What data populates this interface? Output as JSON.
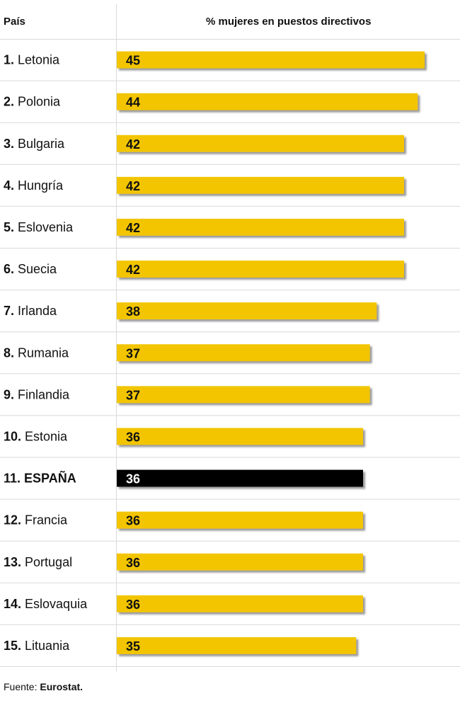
{
  "header": {
    "country_label": "País",
    "value_label": "% mujeres en puestos directivos"
  },
  "footer": {
    "prefix": "Fuente:",
    "source": "Eurostat."
  },
  "colors": {
    "bar": "#f2c500",
    "highlight": "#000000",
    "shadow": "#999999",
    "rule": "#d9d9d9"
  },
  "chart_data": {
    "type": "bar",
    "orientation": "horizontal",
    "xlim": [
      0,
      45
    ],
    "categories": [
      {
        "rank": "1.",
        "name": "Letonia",
        "value": 45,
        "highlight": false
      },
      {
        "rank": "2.",
        "name": "Polonia",
        "value": 44,
        "highlight": false
      },
      {
        "rank": "3.",
        "name": "Bulgaria",
        "value": 42,
        "highlight": false
      },
      {
        "rank": "4.",
        "name": "Hungría",
        "value": 42,
        "highlight": false
      },
      {
        "rank": "5.",
        "name": "Eslovenia",
        "value": 42,
        "highlight": false
      },
      {
        "rank": "6.",
        "name": "Suecia",
        "value": 42,
        "highlight": false
      },
      {
        "rank": "7.",
        "name": "Irlanda",
        "value": 38,
        "highlight": false
      },
      {
        "rank": "8.",
        "name": "Rumania",
        "value": 37,
        "highlight": false
      },
      {
        "rank": "9.",
        "name": "Finlandia",
        "value": 37,
        "highlight": false
      },
      {
        "rank": "10.",
        "name": "Estonia",
        "value": 36,
        "highlight": false
      },
      {
        "rank": "11.",
        "name": "ESPAÑA",
        "value": 36,
        "highlight": true
      },
      {
        "rank": "12.",
        "name": "Francia",
        "value": 36,
        "highlight": false
      },
      {
        "rank": "13.",
        "name": "Portugal",
        "value": 36,
        "highlight": false
      },
      {
        "rank": "14.",
        "name": "Eslovaquia",
        "value": 36,
        "highlight": false
      },
      {
        "rank": "15.",
        "name": "Lituania",
        "value": 35,
        "highlight": false
      }
    ]
  }
}
